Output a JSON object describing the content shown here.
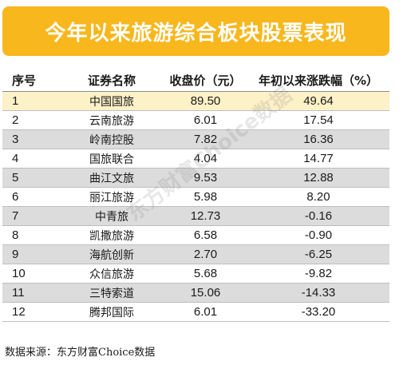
{
  "title": "今年以来旅游综合板块股票表现",
  "headers": {
    "index": "序号",
    "name": "证券名称",
    "price": "收盘价（元）",
    "change": "年初以来涨跌幅（%）"
  },
  "rows": [
    {
      "index": "1",
      "name": "中国国旅",
      "price": "89.50",
      "change": "49.64"
    },
    {
      "index": "2",
      "name": "云南旅游",
      "price": "6.01",
      "change": "17.54"
    },
    {
      "index": "3",
      "name": "岭南控股",
      "price": "7.82",
      "change": "16.36"
    },
    {
      "index": "4",
      "name": "国旅联合",
      "price": "4.04",
      "change": "14.77"
    },
    {
      "index": "5",
      "name": "曲江文旅",
      "price": "9.53",
      "change": "12.88"
    },
    {
      "index": "6",
      "name": "丽江旅游",
      "price": "5.98",
      "change": "8.20"
    },
    {
      "index": "7",
      "name": "中青旅",
      "price": "12.73",
      "change": "-0.16"
    },
    {
      "index": "8",
      "name": "凯撒旅游",
      "price": "6.58",
      "change": "-0.90"
    },
    {
      "index": "9",
      "name": "海航创新",
      "price": "2.70",
      "change": "-6.25"
    },
    {
      "index": "10",
      "name": "众信旅游",
      "price": "5.68",
      "change": "-9.82"
    },
    {
      "index": "11",
      "name": "三特索道",
      "price": "15.06",
      "change": "-14.33"
    },
    {
      "index": "12",
      "name": "腾邦国际",
      "price": "6.01",
      "change": "-33.20"
    }
  ],
  "source": "数据来源：东方财富Choice数据",
  "watermark": "东方财富Choice数据",
  "colors": {
    "banner": "#f7b71d",
    "highlight_row": "#fdf1c7",
    "alt_row": "#dcdcdc"
  }
}
